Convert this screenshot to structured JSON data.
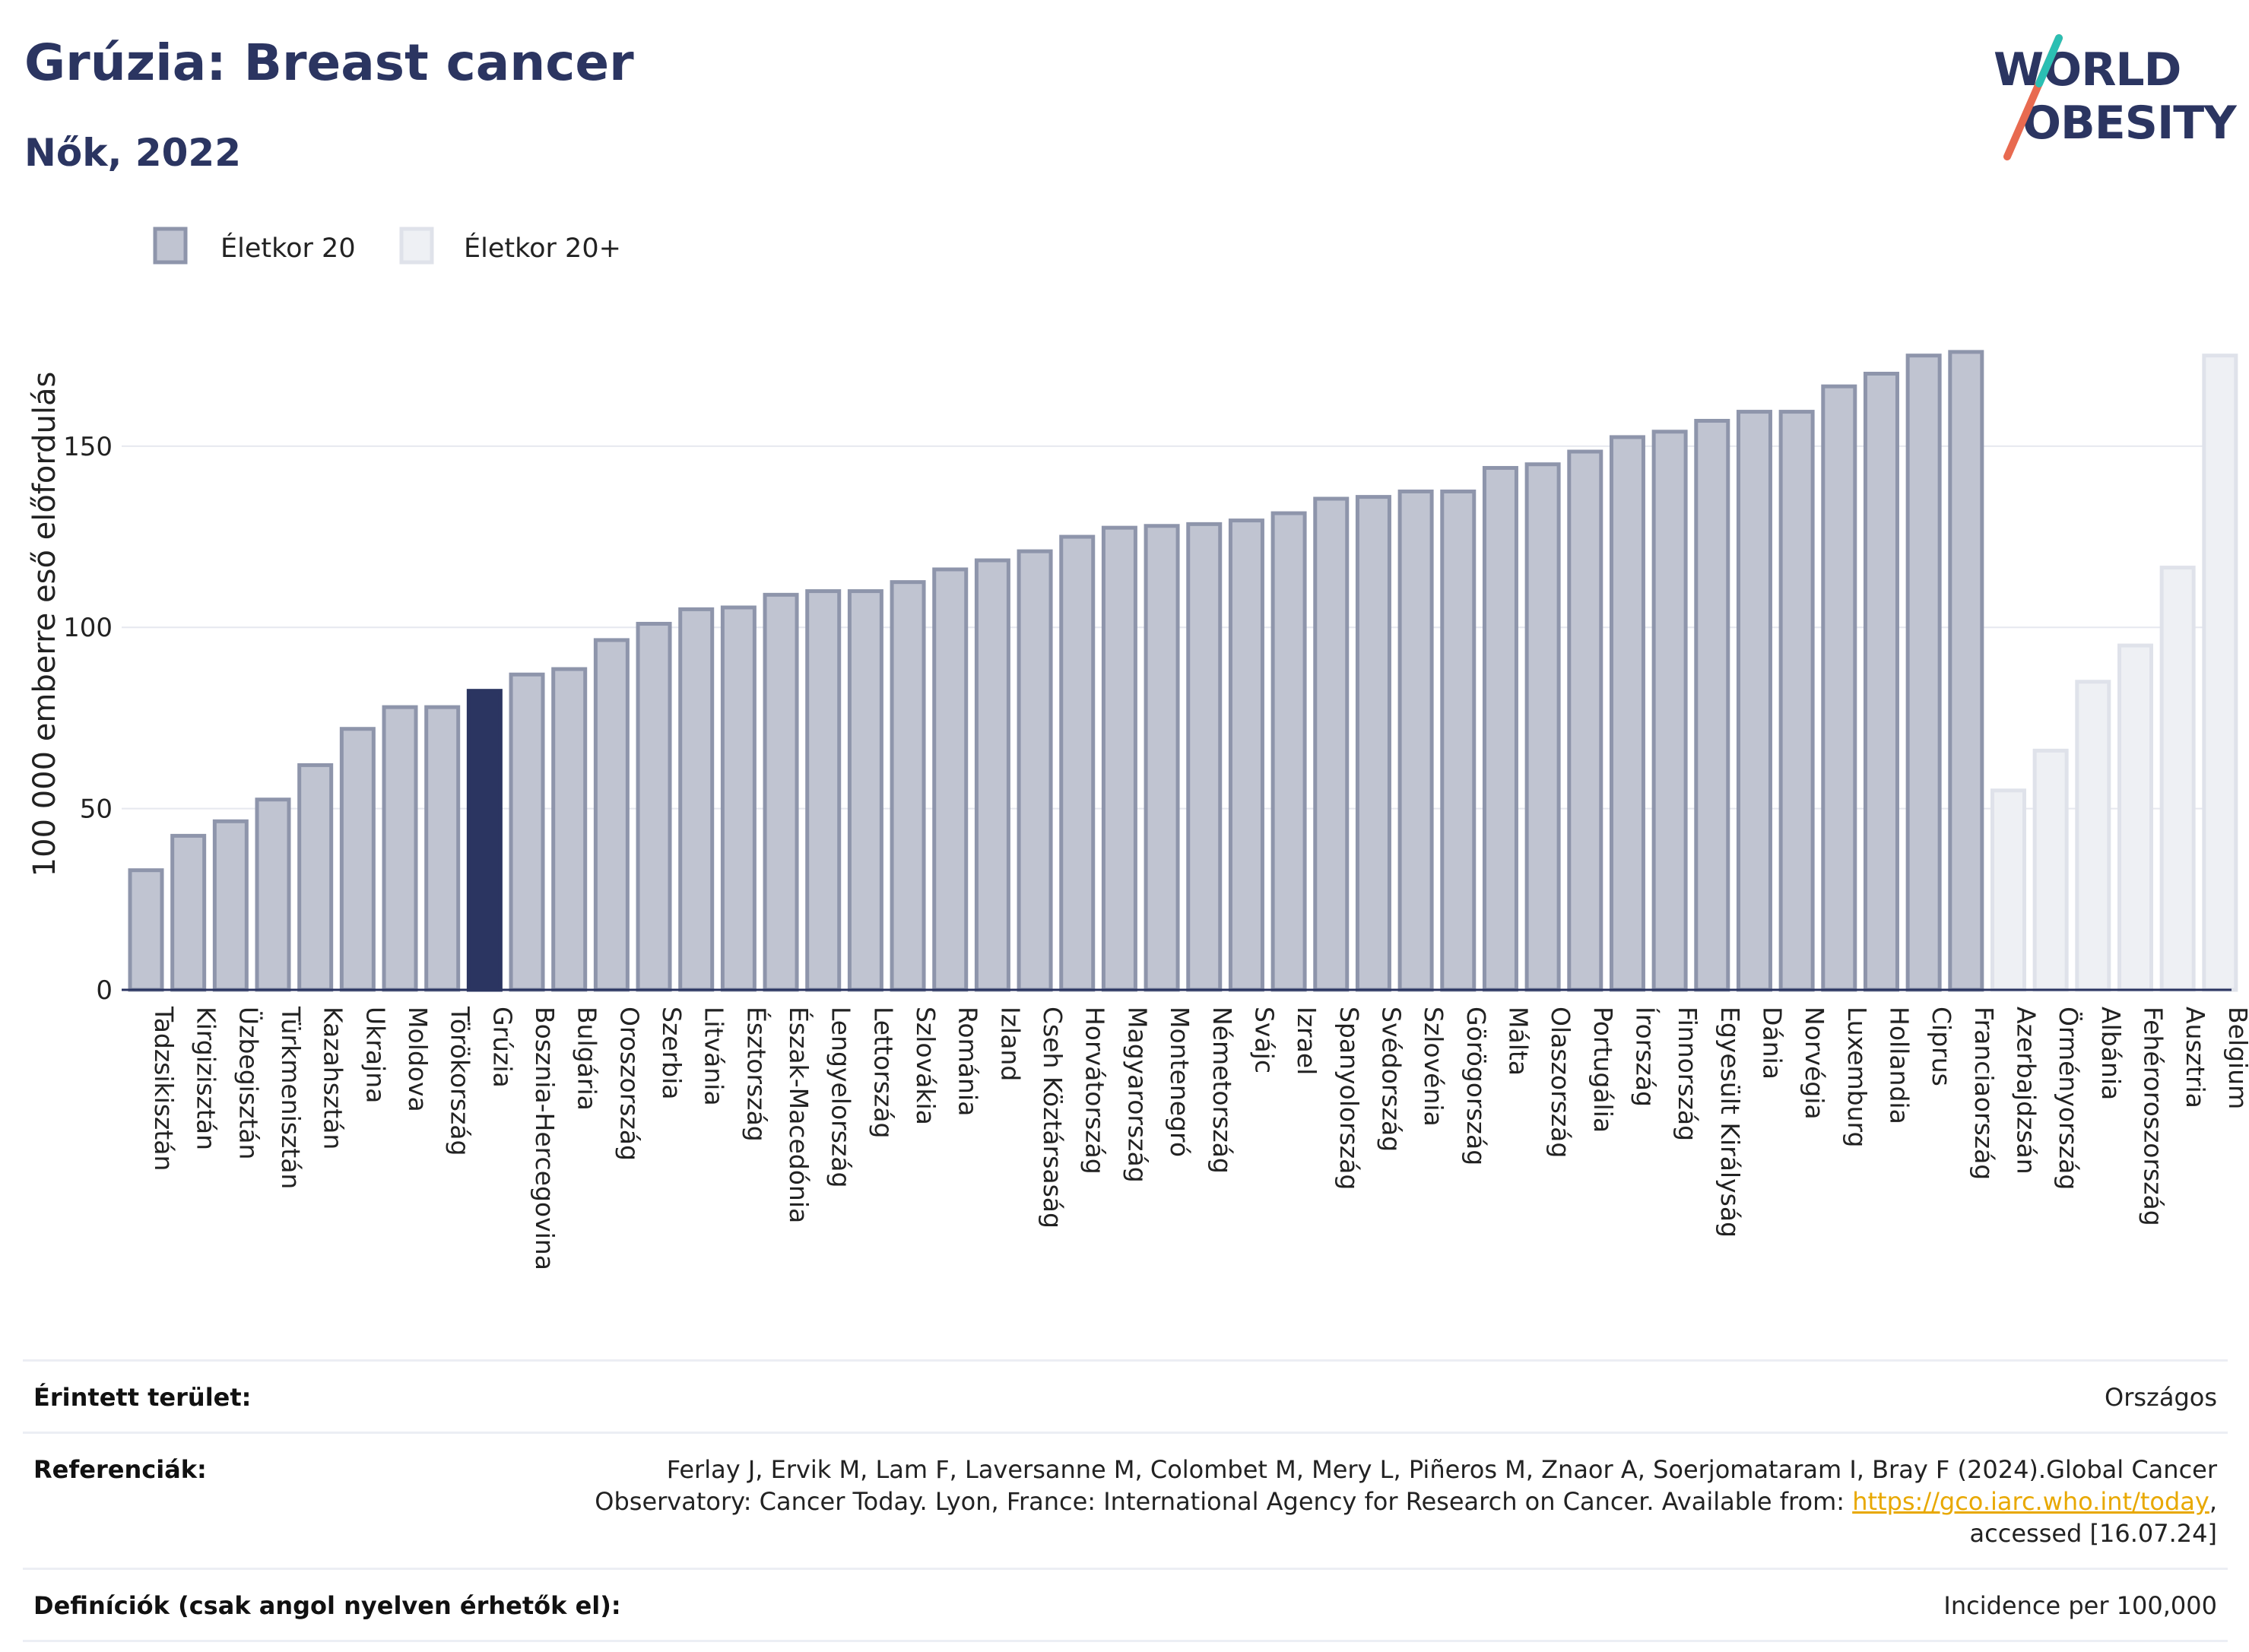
{
  "header": {
    "title": "Grúzia: Breast cancer",
    "subtitle": "Nők, 2022"
  },
  "logo": {
    "line1": "WORLD",
    "line2": "OBESITY",
    "alt": "World Obesity logo"
  },
  "colors": {
    "highlight": "#2b3561",
    "age20": "#c0c4d1",
    "age20_border": "#8e95ab",
    "age20plus": "#eef0f4",
    "age20plus_border": "#dfe2ea",
    "link": "#e8a800"
  },
  "chart_data": {
    "type": "bar",
    "ylabel": "100 000 emberre eső előfordulás",
    "ylim": [
      0,
      185
    ],
    "yticks": [
      0,
      50,
      100,
      150
    ],
    "grid": true,
    "legend_position": "top-left",
    "highlight": "Grúzia",
    "series": [
      {
        "name": "Életkor 20",
        "key": "age20"
      },
      {
        "name": "Életkor 20+",
        "key": "age20plus"
      }
    ],
    "categories": [
      "Tadzsikisztán",
      "Kirgizisztán",
      "Üzbegisztán",
      "Türkmenisztán",
      "Kazahsztán",
      "Ukrajna",
      "Moldova",
      "Törökország",
      "Grúzia",
      "Bosznia-Hercegovina",
      "Bulgária",
      "Oroszország",
      "Szerbia",
      "Litvánia",
      "Észtország",
      "Észak-Macedónia",
      "Lengyelország",
      "Lettország",
      "Szlovákia",
      "Románia",
      "Izland",
      "Cseh Köztársaság",
      "Horvátország",
      "Magyarország",
      "Montenegró",
      "Németország",
      "Svájc",
      "Izrael",
      "Spanyolország",
      "Svédország",
      "Szlovénia",
      "Görögország",
      "Málta",
      "Olaszország",
      "Portugália",
      "Írország",
      "Finnország",
      "Egyesült Királyság",
      "Dánia",
      "Norvégia",
      "Luxemburg",
      "Hollandia",
      "Ciprus",
      "Franciaország",
      "Azerbajdzsán",
      "Örményország",
      "Albánia",
      "Fehéroroszország",
      "Ausztria",
      "Belgium"
    ],
    "values": [
      33,
      42.5,
      46.5,
      52.5,
      62,
      72,
      78,
      78,
      82.5,
      87,
      88.5,
      96.5,
      101,
      105,
      105.5,
      109,
      110,
      110,
      112.5,
      116,
      118.5,
      121,
      125,
      127.5,
      128,
      128.5,
      129.5,
      131.5,
      135.5,
      136,
      137.5,
      137.5,
      144,
      145,
      148.5,
      152.5,
      154,
      157,
      159.5,
      159.5,
      166.5,
      170,
      175,
      176,
      55,
      66,
      85,
      95,
      116.5,
      175
    ],
    "series_key": [
      "age20",
      "age20",
      "age20",
      "age20",
      "age20",
      "age20",
      "age20",
      "age20",
      "age20",
      "age20",
      "age20",
      "age20",
      "age20",
      "age20",
      "age20",
      "age20",
      "age20",
      "age20",
      "age20",
      "age20",
      "age20",
      "age20",
      "age20",
      "age20",
      "age20",
      "age20",
      "age20",
      "age20",
      "age20",
      "age20",
      "age20",
      "age20",
      "age20",
      "age20",
      "age20",
      "age20",
      "age20",
      "age20",
      "age20",
      "age20",
      "age20",
      "age20",
      "age20",
      "age20",
      "age20plus",
      "age20plus",
      "age20plus",
      "age20plus",
      "age20plus",
      "age20plus"
    ]
  },
  "info": {
    "area_label": "Érintett terület:",
    "area_value": "Országos",
    "refs_label": "Referenciák:",
    "refs_text_before": "Ferlay J, Ervik M, Lam F, Laversanne M, Colombet M, Mery L, Piñeros M, Znaor A, Soerjomataram I, Bray F (2024).Global Cancer Observatory: Cancer Today. Lyon, France: International Agency for Research on Cancer. Available from: ",
    "refs_link": "https://gco.iarc.who.int/today",
    "refs_text_after": ", accessed [16.07.24]",
    "defs_label": "Definíciók (csak angol nyelven érhetők el):",
    "defs_value": "Incidence per 100,000"
  }
}
